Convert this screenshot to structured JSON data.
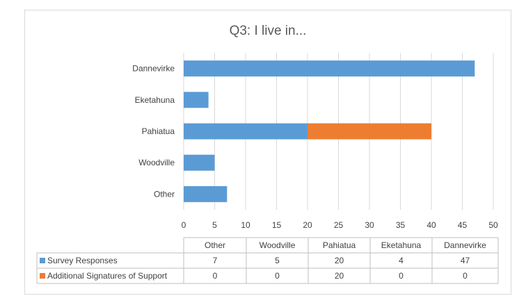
{
  "chart_data": {
    "type": "bar",
    "orientation": "horizontal",
    "stacked": true,
    "title": "Q3: I live in...",
    "categories": [
      "Other",
      "Woodville",
      "Pahiatua",
      "Eketahuna",
      "Dannevirke"
    ],
    "series": [
      {
        "name": "Survey Responses",
        "values": [
          7,
          5,
          20,
          4,
          47
        ],
        "color": "#5b9bd5"
      },
      {
        "name": "Additional Signatures of Support",
        "values": [
          0,
          0,
          20,
          0,
          0
        ],
        "color": "#ed7d31"
      }
    ],
    "xlim": [
      0,
      50
    ],
    "xticks": [
      0,
      5,
      10,
      15,
      20,
      25,
      30,
      35,
      40,
      45,
      50
    ],
    "grid": "vertical",
    "data_table": true,
    "table_values": [
      [
        "7",
        "5",
        "20",
        "4",
        "47"
      ],
      [
        "0",
        "0",
        "20",
        "0",
        "0"
      ]
    ]
  }
}
